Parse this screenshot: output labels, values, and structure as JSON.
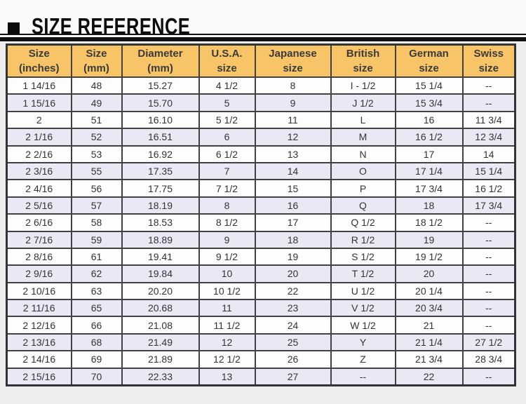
{
  "page": {
    "title": "SIZE REFERENCE"
  },
  "colors": {
    "header_bg": "#f7c568",
    "row_bg": "#fdfdfd",
    "row_alt_bg": "#e9e9f5",
    "border": "#414141",
    "title_black": "#0a0a0a"
  },
  "table": {
    "columns": [
      "Size\n(inches)",
      "Size\n(mm)",
      "Diameter\n(mm)",
      "U.S.A.\nsize",
      "Japanese\nsize",
      "British\nsize",
      "German\nsize",
      "Swiss\nsize"
    ],
    "rows": [
      [
        "1 14/16",
        "48",
        "15.27",
        "4 1/2",
        "8",
        "I - 1/2",
        "15 1/4",
        "--"
      ],
      [
        "1 15/16",
        "49",
        "15.70",
        "5",
        "9",
        "J 1/2",
        "15 3/4",
        "--"
      ],
      [
        "2",
        "51",
        "16.10",
        "5 1/2",
        "11",
        "L",
        "16",
        "11 3/4"
      ],
      [
        "2 1/16",
        "52",
        "16.51",
        "6",
        "12",
        "M",
        "16 1/2",
        "12 3/4"
      ],
      [
        "2 2/16",
        "53",
        "16.92",
        "6 1/2",
        "13",
        "N",
        "17",
        "14"
      ],
      [
        "2 3/16",
        "55",
        "17.35",
        "7",
        "14",
        "O",
        "17 1/4",
        "15 1/4"
      ],
      [
        "2 4/16",
        "56",
        "17.75",
        "7 1/2",
        "15",
        "P",
        "17 3/4",
        "16 1/2"
      ],
      [
        "2 5/16",
        "57",
        "18.19",
        "8",
        "16",
        "Q",
        "18",
        "17 3/4"
      ],
      [
        "2 6/16",
        "58",
        "18.53",
        "8 1/2",
        "17",
        "Q 1/2",
        "18 1/2",
        "--"
      ],
      [
        "2 7/16",
        "59",
        "18.89",
        "9",
        "18",
        "R 1/2",
        "19",
        "--"
      ],
      [
        "2 8/16",
        "61",
        "19.41",
        "9 1/2",
        "19",
        "S 1/2",
        "19 1/2",
        "--"
      ],
      [
        "2 9/16",
        "62",
        "19.84",
        "10",
        "20",
        "T 1/2",
        "20",
        "--"
      ],
      [
        "2 10/16",
        "63",
        "20.20",
        "10 1/2",
        "22",
        "U 1/2",
        "20 1/4",
        "--"
      ],
      [
        "2 11/16",
        "65",
        "20.68",
        "11",
        "23",
        "V 1/2",
        "20 3/4",
        "--"
      ],
      [
        "2 12/16",
        "66",
        "21.08",
        "11 1/2",
        "24",
        "W 1/2",
        "21",
        "--"
      ],
      [
        "2 13/16",
        "68",
        "21.49",
        "12",
        "25",
        "Y",
        "21 1/4",
        "27 1/2"
      ],
      [
        "2 14/16",
        "69",
        "21.89",
        "12 1/2",
        "26",
        "Z",
        "21 3/4",
        "28 3/4"
      ],
      [
        "2 15/16",
        "70",
        "22.33",
        "13",
        "27",
        "--",
        "22",
        "--"
      ]
    ]
  }
}
